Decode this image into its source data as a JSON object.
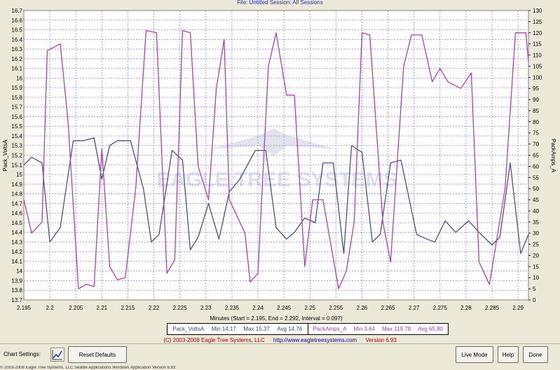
{
  "top_caption": "File: Untitled   Session: All Sessions",
  "chart_data": {
    "type": "line",
    "title": "",
    "xlabel": "Minutes (Start = 2.195,  End = 2.292,  Interval = 0.097)",
    "ylabel_left": "Pack_VoltsA",
    "ylabel_right": "PackAmps_A",
    "xlim": [
      2.195,
      2.292
    ],
    "ylim_left": [
      13.7,
      16.7
    ],
    "ylim_right": [
      0,
      130
    ],
    "grid": true,
    "x_ticks": [
      "2.195",
      "2.2",
      "2.205",
      "2.21",
      "2.215",
      "2.22",
      "2.225",
      "2.23",
      "2.235",
      "2.24",
      "2.245",
      "2.25",
      "2.255",
      "2.26",
      "2.265",
      "2.27",
      "2.275",
      "2.28",
      "2.285",
      "2.29"
    ],
    "y_left_ticks": [
      "13.7",
      "13.8",
      "13.9",
      "14",
      "14.1",
      "14.2",
      "14.3",
      "14.4",
      "14.5",
      "14.6",
      "14.7",
      "14.8",
      "14.9",
      "15",
      "15.1",
      "15.2",
      "15.3",
      "15.4",
      "15.5",
      "15.6",
      "15.7",
      "15.8",
      "15.9",
      "16",
      "16.1",
      "16.2",
      "16.3",
      "16.4",
      "16.5",
      "16.6",
      "16.7"
    ],
    "y_right_ticks": [
      "0",
      "5",
      "10",
      "15",
      "20",
      "25",
      "30",
      "35",
      "40",
      "45",
      "50",
      "55",
      "60",
      "65",
      "70",
      "75",
      "80",
      "85",
      "90",
      "95",
      "100",
      "105",
      "110",
      "115",
      "120",
      "125",
      "130"
    ],
    "watermark": "EAGLE TREE SYSTEMS",
    "series": [
      {
        "name": "Pack_VoltsA",
        "axis": "left",
        "color": "#4a5280",
        "x": [
          2.195,
          2.1965,
          2.1985,
          2.2,
          2.202,
          2.2045,
          2.2065,
          2.2085,
          2.21,
          2.2115,
          2.213,
          2.2155,
          2.218,
          2.2195,
          2.221,
          2.2235,
          2.2255,
          2.227,
          2.2285,
          2.2305,
          2.2325,
          2.2345,
          2.2365,
          2.2395,
          2.2415,
          2.2435,
          2.2455,
          2.247,
          2.249,
          2.251,
          2.2525,
          2.2545,
          2.2565,
          2.258,
          2.26,
          2.262,
          2.2635,
          2.2655,
          2.2675,
          2.2705,
          2.2725,
          2.274,
          2.276,
          2.278,
          2.2805,
          2.2825,
          2.285,
          2.2865,
          2.2885,
          2.2905,
          2.292
        ],
        "values": [
          15.1,
          15.18,
          15.12,
          14.3,
          14.45,
          15.35,
          15.35,
          15.38,
          14.95,
          15.3,
          15.35,
          15.35,
          14.85,
          14.3,
          14.38,
          15.25,
          15.15,
          14.22,
          14.35,
          14.7,
          14.33,
          14.82,
          14.95,
          15.25,
          15.25,
          14.45,
          14.33,
          14.4,
          14.55,
          14.5,
          15.12,
          15.12,
          14.18,
          15.3,
          15.23,
          14.3,
          14.38,
          15.12,
          15.15,
          14.38,
          14.33,
          14.3,
          14.52,
          14.4,
          14.52,
          14.4,
          14.27,
          14.35,
          15.12,
          14.18,
          14.38
        ]
      },
      {
        "name": "PackAmps_A",
        "axis": "right",
        "color": "#b040b0",
        "x": [
          2.195,
          2.1965,
          2.1985,
          2.1995,
          2.202,
          2.2035,
          2.2055,
          2.207,
          2.2085,
          2.21,
          2.2115,
          2.213,
          2.2145,
          2.2165,
          2.2185,
          2.2205,
          2.2225,
          2.224,
          2.2255,
          2.227,
          2.2285,
          2.2305,
          2.232,
          2.2335,
          2.2345,
          2.2375,
          2.2385,
          2.24,
          2.242,
          2.2435,
          2.2455,
          2.247,
          2.249,
          2.2505,
          2.2525,
          2.2555,
          2.257,
          2.2585,
          2.26,
          2.2615,
          2.264,
          2.2655,
          2.268,
          2.2695,
          2.2715,
          2.2735,
          2.275,
          2.2765,
          2.279,
          2.281,
          2.2825,
          2.2845,
          2.2875,
          2.2895,
          2.2915,
          2.292
        ],
        "values": [
          45,
          30,
          35,
          112,
          115,
          80,
          5,
          7,
          6,
          68,
          15,
          9,
          10,
          50,
          121,
          120,
          12,
          18,
          121,
          120,
          60,
          45,
          95,
          117,
          45,
          30,
          8,
          12,
          105,
          120,
          92,
          92,
          15,
          45,
          45,
          5,
          13,
          35,
          120,
          119,
          35,
          17,
          105,
          119,
          119,
          98,
          104,
          98,
          95,
          102,
          17,
          7,
          50,
          120,
          120,
          107
        ]
      }
    ],
    "legend": {
      "placement": "bottom",
      "a": {
        "name": "Pack_VoltsA",
        "min": "Min 14.17",
        "max": "Max 15.37",
        "avg": "Avg 14.76"
      },
      "b": {
        "name": "PackAmps_A",
        "min": "Min 3.64",
        "max": "Max 119.78",
        "avg": "Avg 65.80"
      }
    }
  },
  "footer": {
    "copyright": "(C) 2003-2008 Eagle Tree Systems, LLC",
    "url": "http://www.eagletreesystems.com",
    "version": "Version 6.93"
  },
  "toolbar": {
    "chart_settings_label": "Chart Settings:",
    "reset_label": "Reset Defaults",
    "live_mode_label": "Live Mode",
    "help_label": "Help",
    "done_label": "Done"
  },
  "status_bar": "© 2003-2008 Eagle Tree Systems, LLC   Seattle Applications   Windows Application Version 6.93"
}
